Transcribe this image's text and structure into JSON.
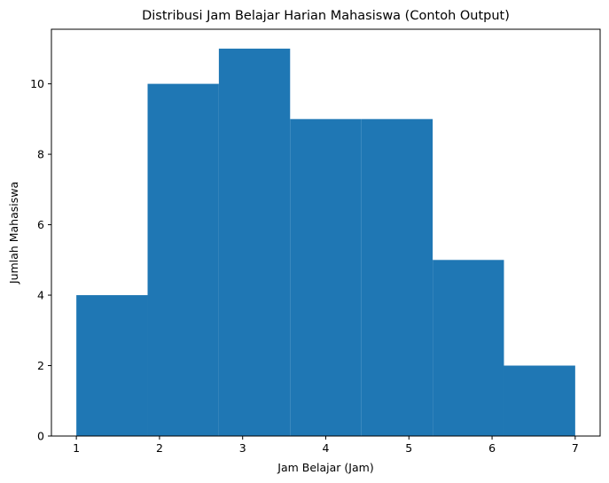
{
  "chart_data": {
    "type": "histogram",
    "title": "Distribusi Jam Belajar Harian Mahasiswa (Contoh Output)",
    "xlabel": "Jam Belajar (Jam)",
    "ylabel": "Jumlah Mahasiswa",
    "bin_edges": [
      1.0,
      1.857,
      2.714,
      3.571,
      4.429,
      5.286,
      6.143,
      7.0
    ],
    "counts": [
      4,
      10,
      11,
      9,
      9,
      5,
      2
    ],
    "xlim": [
      0.7,
      7.3
    ],
    "ylim": [
      0,
      11.55
    ],
    "xticks": [
      1,
      2,
      3,
      4,
      5,
      6,
      7
    ],
    "yticks": [
      0,
      2,
      4,
      6,
      8,
      10
    ],
    "bar_color": "#1f77b4",
    "grid": false
  }
}
